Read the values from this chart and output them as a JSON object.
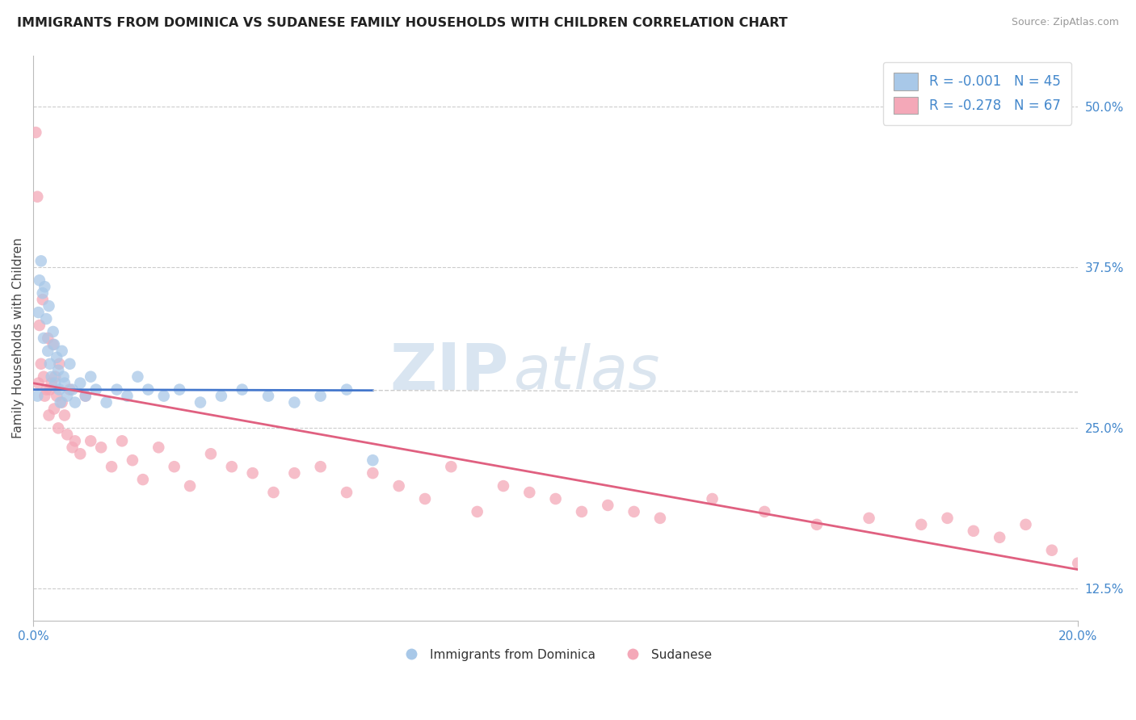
{
  "title": "IMMIGRANTS FROM DOMINICA VS SUDANESE FAMILY HOUSEHOLDS WITH CHILDREN CORRELATION CHART",
  "source_text": "Source: ZipAtlas.com",
  "ylabel": "Family Households with Children",
  "xlim": [
    0.0,
    20.0
  ],
  "ylim": [
    10.0,
    54.0
  ],
  "yticks_right": [
    12.5,
    25.0,
    37.5,
    50.0
  ],
  "legend_blue_r": "R = -0.001",
  "legend_blue_n": "N = 45",
  "legend_pink_r": "R = -0.278",
  "legend_pink_n": "N = 67",
  "blue_color": "#a8c8e8",
  "pink_color": "#f4a8b8",
  "blue_line_color": "#4477cc",
  "pink_line_color": "#e06080",
  "legend_label_blue": "Immigrants from Dominica",
  "legend_label_pink": "Sudanese",
  "blue_dots_x": [
    0.08,
    0.1,
    0.12,
    0.15,
    0.18,
    0.2,
    0.22,
    0.25,
    0.28,
    0.3,
    0.32,
    0.35,
    0.38,
    0.4,
    0.42,
    0.45,
    0.48,
    0.5,
    0.52,
    0.55,
    0.58,
    0.6,
    0.65,
    0.7,
    0.75,
    0.8,
    0.9,
    1.0,
    1.1,
    1.2,
    1.4,
    1.6,
    1.8,
    2.0,
    2.2,
    2.5,
    2.8,
    3.2,
    3.6,
    4.0,
    4.5,
    5.0,
    5.5,
    6.0,
    6.5
  ],
  "blue_dots_y": [
    27.5,
    34.0,
    36.5,
    38.0,
    35.5,
    32.0,
    36.0,
    33.5,
    31.0,
    34.5,
    30.0,
    29.0,
    32.5,
    31.5,
    28.5,
    30.5,
    29.5,
    28.0,
    27.0,
    31.0,
    29.0,
    28.5,
    27.5,
    30.0,
    28.0,
    27.0,
    28.5,
    27.5,
    29.0,
    28.0,
    27.0,
    28.0,
    27.5,
    29.0,
    28.0,
    27.5,
    28.0,
    27.0,
    27.5,
    28.0,
    27.5,
    27.0,
    27.5,
    28.0,
    22.5
  ],
  "pink_dots_x": [
    0.05,
    0.08,
    0.1,
    0.12,
    0.15,
    0.18,
    0.2,
    0.22,
    0.25,
    0.28,
    0.3,
    0.32,
    0.35,
    0.38,
    0.4,
    0.42,
    0.45,
    0.48,
    0.5,
    0.55,
    0.6,
    0.65,
    0.7,
    0.75,
    0.8,
    0.9,
    1.0,
    1.1,
    1.3,
    1.5,
    1.7,
    1.9,
    2.1,
    2.4,
    2.7,
    3.0,
    3.4,
    3.8,
    4.2,
    4.6,
    5.0,
    5.5,
    6.0,
    6.5,
    7.0,
    7.5,
    8.0,
    8.5,
    9.0,
    9.5,
    10.0,
    10.5,
    11.0,
    11.5,
    12.0,
    13.0,
    14.0,
    15.0,
    16.0,
    17.0,
    17.5,
    18.0,
    18.5,
    19.0,
    19.5,
    20.0,
    20.5
  ],
  "pink_dots_y": [
    48.0,
    43.0,
    28.5,
    33.0,
    30.0,
    35.0,
    29.0,
    27.5,
    28.0,
    32.0,
    26.0,
    28.0,
    28.5,
    31.5,
    26.5,
    29.0,
    27.5,
    25.0,
    30.0,
    27.0,
    26.0,
    24.5,
    28.0,
    23.5,
    24.0,
    23.0,
    27.5,
    24.0,
    23.5,
    22.0,
    24.0,
    22.5,
    21.0,
    23.5,
    22.0,
    20.5,
    23.0,
    22.0,
    21.5,
    20.0,
    21.5,
    22.0,
    20.0,
    21.5,
    20.5,
    19.5,
    22.0,
    18.5,
    20.5,
    20.0,
    19.5,
    18.5,
    19.0,
    18.5,
    18.0,
    19.5,
    18.5,
    17.5,
    18.0,
    17.5,
    18.0,
    17.0,
    16.5,
    17.5,
    15.5,
    14.5,
    13.5
  ],
  "blue_trend_y0": 28.0,
  "blue_trend_y1": 27.8,
  "blue_trend_x_end": 6.5,
  "pink_trend_y0": 28.5,
  "pink_trend_y1": 14.0,
  "watermark_zip_color": "#c0d4e8",
  "watermark_atlas_color": "#b8cce0",
  "background_color": "#ffffff",
  "grid_color": "#cccccc"
}
